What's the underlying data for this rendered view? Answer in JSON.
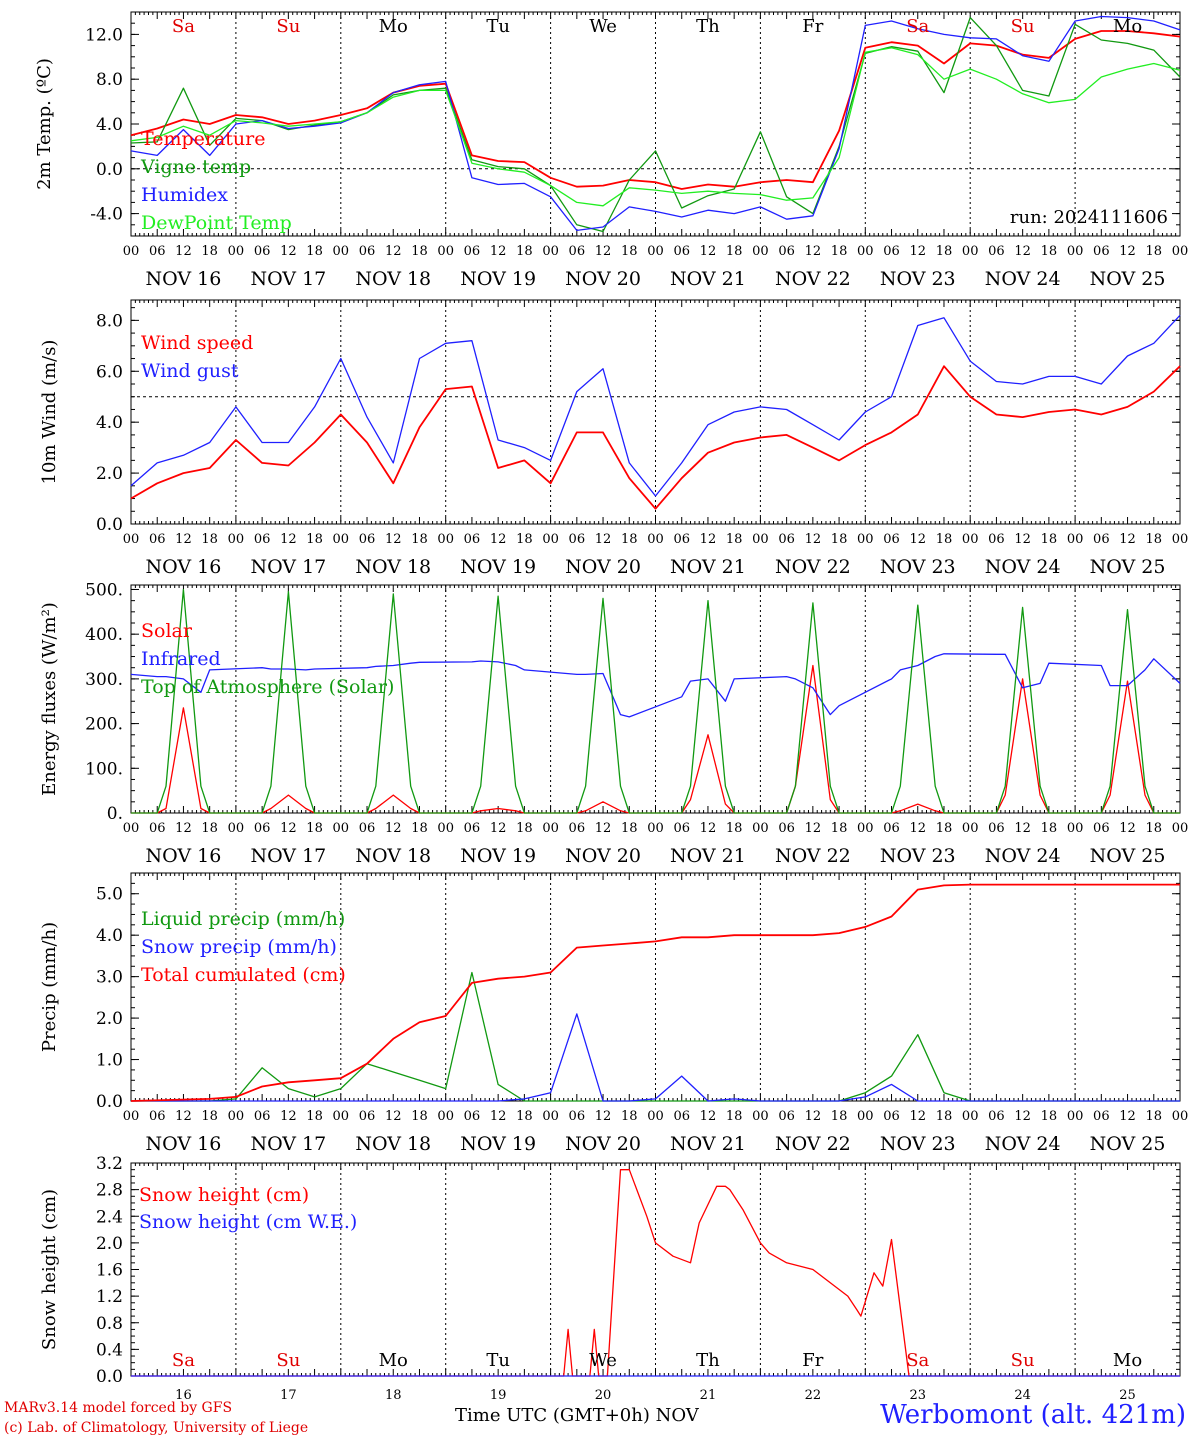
{
  "days": [
    "NOV 16",
    "NOV 17",
    "NOV 18",
    "NOV 19",
    "NOV 20",
    "NOV 21",
    "NOV 22",
    "NOV 23",
    "NOV 24",
    "NOV 25"
  ],
  "weekdays": [
    "Sa",
    "Su",
    "Mo",
    "Tu",
    "We",
    "Th",
    "Fr",
    "Sa",
    "Su",
    "Mo"
  ],
  "weekday_colors": [
    "#e00000",
    "#e00000",
    "#000000",
    "#000000",
    "#000000",
    "#000000",
    "#000000",
    "#e00000",
    "#e00000",
    "#000000"
  ],
  "day_numbers": [
    "16",
    "17",
    "18",
    "19",
    "20",
    "21",
    "22",
    "23",
    "24",
    "25"
  ],
  "hour_ticks": [
    "00",
    "06",
    "12",
    "18"
  ],
  "x_axis_title": "Time UTC (GMT+0h)",
  "x_axis_month": "NOV",
  "footer_model": "MARv3.14 model forced by GFS",
  "footer_copyright": "(c) Lab. of Climatology, University of Liege",
  "station": "Werbomont (alt. 421m)",
  "colors": {
    "red": "#ff0000",
    "darkgreen": "#119911",
    "blue": "#2020ff",
    "lightgreen": "#22ee22",
    "darkred": "#e00000"
  },
  "chart_data": [
    {
      "type": "line",
      "ylabel": "2m Temp. (ºC)",
      "ylim": [
        -6,
        14
      ],
      "yticks": [
        "-4.0",
        "0.0",
        "4.0",
        "8.0",
        "12.0"
      ],
      "ref_line": 0,
      "annotation": "run: 2024111606",
      "weekday_labels": "top",
      "x_hours": [
        0,
        6,
        12,
        18,
        24,
        30,
        36,
        42,
        48,
        54,
        60,
        66,
        72,
        78,
        84,
        90,
        96,
        102,
        108,
        114,
        120,
        126,
        132,
        138,
        144,
        150,
        156,
        162,
        168,
        174,
        180,
        186,
        192,
        198,
        204,
        210,
        216,
        222,
        228,
        234,
        240
      ],
      "series": [
        {
          "name": "Temperature",
          "color": "red",
          "values": [
            3.0,
            3.6,
            4.4,
            4.0,
            4.8,
            4.6,
            4.0,
            4.3,
            4.8,
            5.4,
            6.8,
            7.4,
            7.6,
            1.2,
            0.7,
            0.6,
            -0.8,
            -1.6,
            -1.5,
            -1.0,
            -1.2,
            -1.8,
            -1.4,
            -1.6,
            -1.2,
            -1.0,
            -1.2,
            3.4,
            10.8,
            11.3,
            11.0,
            9.4,
            11.2,
            11.0,
            10.2,
            9.9,
            11.6,
            12.3,
            12.3,
            12.1,
            11.8
          ]
        },
        {
          "name": "Vigne temp",
          "color": "darkgreen",
          "values": [
            2.3,
            2.4,
            7.2,
            2.1,
            4.5,
            4.3,
            3.5,
            3.9,
            4.2,
            5.0,
            6.6,
            7.0,
            7.2,
            0.8,
            0.2,
            0.0,
            -1.5,
            -5.0,
            -5.6,
            -1.0,
            1.6,
            -3.5,
            -2.4,
            -1.8,
            3.3,
            -2.5,
            -4.0,
            2.0,
            10.3,
            10.9,
            10.5,
            6.8,
            13.5,
            11.0,
            7.0,
            6.5,
            12.9,
            11.5,
            11.2,
            10.6,
            8.2
          ]
        },
        {
          "name": "Humidex",
          "color": "blue",
          "values": [
            1.6,
            1.2,
            3.5,
            1.2,
            4.0,
            4.3,
            3.6,
            3.8,
            4.1,
            5.0,
            6.8,
            7.5,
            7.8,
            -0.8,
            -1.4,
            -1.3,
            -2.5,
            -5.5,
            -5.2,
            -3.4,
            -3.8,
            -4.3,
            -3.7,
            -4.0,
            -3.4,
            -4.5,
            -4.2,
            1.8,
            12.8,
            13.2,
            12.5,
            12.0,
            11.7,
            11.6,
            10.1,
            9.6,
            13.2,
            13.6,
            13.5,
            13.2,
            12.4
          ]
        },
        {
          "name": "DewPoint Temp",
          "color": "lightgreen",
          "values": [
            2.5,
            2.8,
            3.8,
            3.0,
            4.3,
            4.1,
            3.8,
            4.0,
            4.2,
            5.0,
            6.4,
            7.0,
            7.0,
            0.5,
            0.0,
            -0.3,
            -1.5,
            -3.0,
            -3.3,
            -1.7,
            -1.9,
            -2.2,
            -2.0,
            -2.2,
            -2.3,
            -2.8,
            -2.6,
            1.0,
            10.4,
            10.8,
            10.2,
            8.0,
            8.9,
            8.0,
            6.7,
            5.9,
            6.2,
            8.2,
            8.9,
            9.4,
            8.8
          ]
        }
      ]
    },
    {
      "type": "line",
      "ylabel": "10m Wind (m/s)",
      "ylim": [
        0,
        8.8
      ],
      "yticks": [
        "0.0",
        "2.0",
        "4.0",
        "6.0",
        "8.0"
      ],
      "ref_line": 5,
      "x_hours": [
        0,
        6,
        12,
        18,
        24,
        30,
        36,
        42,
        48,
        54,
        60,
        66,
        72,
        78,
        84,
        90,
        96,
        102,
        108,
        114,
        120,
        126,
        132,
        138,
        144,
        150,
        156,
        162,
        168,
        174,
        180,
        186,
        192,
        198,
        204,
        210,
        216,
        222,
        228,
        234,
        240
      ],
      "series": [
        {
          "name": "Wind speed",
          "color": "red",
          "values": [
            1.0,
            1.6,
            2.0,
            2.2,
            3.3,
            2.4,
            2.3,
            3.2,
            4.3,
            3.2,
            1.6,
            3.8,
            5.3,
            5.4,
            2.2,
            2.5,
            1.6,
            3.6,
            3.6,
            1.8,
            0.6,
            1.8,
            2.8,
            3.2,
            3.4,
            3.5,
            3.0,
            2.5,
            3.1,
            3.6,
            4.3,
            6.2,
            5.0,
            4.3,
            4.2,
            4.4,
            4.5,
            4.3,
            4.6,
            5.2,
            6.2
          ]
        },
        {
          "name": "Wind gust",
          "color": "blue",
          "values": [
            1.5,
            2.4,
            2.7,
            3.2,
            4.6,
            3.2,
            3.2,
            4.6,
            6.5,
            4.2,
            2.4,
            6.5,
            7.1,
            7.2,
            3.3,
            3.0,
            2.5,
            5.2,
            6.1,
            2.4,
            1.1,
            2.4,
            3.9,
            4.4,
            4.6,
            4.5,
            3.9,
            3.3,
            4.4,
            5.0,
            7.8,
            8.1,
            6.4,
            5.6,
            5.5,
            5.8,
            5.8,
            5.5,
            6.6,
            7.1,
            8.2
          ]
        }
      ]
    },
    {
      "type": "line",
      "ylabel": "Energy fluxes (W/m²)",
      "ylim": [
        0,
        510
      ],
      "yticks": [
        "0.",
        "100.",
        "200.",
        "300.",
        "400.",
        "500."
      ],
      "x_hours": [
        0,
        6,
        8,
        12,
        16,
        18,
        30,
        32,
        36,
        40,
        42,
        54,
        56,
        60,
        64,
        66,
        78,
        80,
        84,
        88,
        90,
        102,
        104,
        108,
        112,
        114,
        126,
        128,
        132,
        136,
        138,
        150,
        152,
        156,
        160,
        162,
        174,
        176,
        180,
        184,
        186,
        198,
        200,
        204,
        208,
        210,
        222,
        224,
        228,
        232,
        234,
        240
      ],
      "series": [
        {
          "name": "Solar",
          "color": "red",
          "values": [
            0,
            0,
            10,
            235,
            10,
            0,
            0,
            10,
            40,
            10,
            0,
            0,
            10,
            40,
            10,
            0,
            0,
            5,
            10,
            5,
            0,
            0,
            5,
            25,
            5,
            0,
            0,
            30,
            175,
            20,
            0,
            0,
            60,
            330,
            30,
            0,
            0,
            5,
            20,
            5,
            0,
            0,
            40,
            300,
            40,
            0,
            0,
            40,
            295,
            40,
            0,
            0
          ]
        },
        {
          "name": "Infrared",
          "color": "blue",
          "values": [
            310,
            305,
            305,
            300,
            270,
            320,
            325,
            322,
            322,
            320,
            322,
            325,
            328,
            330,
            335,
            337,
            338,
            340,
            338,
            330,
            320,
            310,
            310,
            312,
            220,
            215,
            260,
            295,
            300,
            250,
            300,
            305,
            300,
            280,
            220,
            240,
            300,
            320,
            330,
            350,
            356,
            355,
            355,
            280,
            290,
            335,
            330,
            285,
            285,
            320,
            345,
            290
          ]
        },
        {
          "name": "Top of Atmosphere (Solar)",
          "color": "darkgreen",
          "values": [
            0,
            0,
            60,
            500,
            60,
            0,
            0,
            60,
            495,
            60,
            0,
            0,
            60,
            490,
            60,
            0,
            0,
            60,
            485,
            60,
            0,
            0,
            60,
            480,
            60,
            0,
            0,
            60,
            475,
            60,
            0,
            0,
            60,
            470,
            60,
            0,
            0,
            60,
            465,
            60,
            0,
            0,
            60,
            460,
            60,
            0,
            0,
            60,
            455,
            60,
            0,
            0
          ]
        }
      ]
    },
    {
      "type": "line",
      "ylabel": "Precip (mm/h)",
      "ylim": [
        0,
        5.5
      ],
      "yticks": [
        "0.0",
        "1.0",
        "2.0",
        "3.0",
        "4.0",
        "5.0"
      ],
      "x_hours": [
        0,
        18,
        24,
        30,
        36,
        42,
        48,
        54,
        60,
        66,
        72,
        78,
        84,
        90,
        96,
        102,
        108,
        114,
        120,
        126,
        132,
        138,
        144,
        150,
        156,
        162,
        168,
        174,
        180,
        186,
        192,
        198,
        204,
        210,
        216,
        222,
        228,
        234,
        240
      ],
      "series": [
        {
          "name": "Liquid precip (mm/h)",
          "color": "darkgreen",
          "values": [
            0,
            0,
            0.05,
            0.8,
            0.3,
            0.1,
            0.3,
            0.9,
            0.7,
            0.5,
            0.3,
            3.1,
            0.4,
            0,
            0,
            0,
            0,
            0,
            0,
            0,
            0,
            0,
            0,
            0,
            0,
            0,
            0.2,
            0.6,
            1.6,
            0.2,
            0,
            0,
            0,
            0,
            0,
            0,
            0,
            0,
            0
          ]
        },
        {
          "name": "Snow precip (mm/h)",
          "color": "blue",
          "values": [
            0,
            0,
            0,
            0,
            0,
            0,
            0,
            0,
            0,
            0,
            0,
            0,
            0,
            0.05,
            0.2,
            2.1,
            0,
            0,
            0.05,
            0.6,
            0,
            0.05,
            0,
            0,
            0,
            0,
            0.1,
            0.4,
            0,
            0,
            0,
            0,
            0,
            0,
            0,
            0,
            0,
            0,
            0
          ]
        },
        {
          "name": "Total cumulated (cm)",
          "color": "red",
          "values": [
            0,
            0.05,
            0.1,
            0.35,
            0.45,
            0.5,
            0.55,
            0.9,
            1.5,
            1.9,
            2.05,
            2.85,
            2.95,
            3.0,
            3.1,
            3.7,
            3.75,
            3.8,
            3.85,
            3.95,
            3.95,
            4.0,
            4.0,
            4.0,
            4.0,
            4.05,
            4.2,
            4.45,
            5.1,
            5.2,
            5.22,
            5.22,
            5.22,
            5.22,
            5.22,
            5.22,
            5.22,
            5.22,
            5.22
          ]
        }
      ]
    },
    {
      "type": "line",
      "ylabel": "Snow height (cm)",
      "ylim": [
        0,
        3.2
      ],
      "yticks": [
        "0.0",
        "0.4",
        "0.8",
        "1.2",
        "1.6",
        "2.0",
        "2.4",
        "2.8",
        "3.2"
      ],
      "weekday_labels": "bottom",
      "x_hours": [
        0,
        99,
        100,
        101,
        105,
        106,
        107,
        108,
        109,
        112,
        114,
        118,
        120,
        124,
        128,
        130,
        134,
        136,
        137,
        140,
        144,
        146,
        150,
        156,
        164,
        166,
        167,
        170,
        171,
        172,
        174,
        178,
        180,
        182,
        185,
        190,
        195,
        204,
        208,
        215,
        220,
        223,
        226,
        228,
        240
      ],
      "series": [
        {
          "name": "Snow height (cm)",
          "color": "red",
          "values": [
            0,
            0,
            0.7,
            0,
            0,
            0.7,
            0,
            0,
            0,
            3.1,
            3.1,
            2.4,
            2.0,
            1.8,
            1.7,
            2.3,
            2.85,
            2.85,
            2.8,
            2.5,
            2.0,
            1.85,
            1.7,
            1.6,
            1.2,
            1.0,
            0.9,
            1.55,
            1.45,
            1.35,
            2.05,
            0,
            0,
            0,
            0,
            0,
            0,
            0,
            0,
            0,
            0,
            0,
            0,
            0,
            0
          ]
        },
        {
          "name": "Snow height (cm W.E.)",
          "color": "blue",
          "values": [
            0,
            0,
            0,
            0,
            0,
            0,
            0,
            0,
            0,
            0,
            0,
            0,
            0,
            0,
            0,
            0,
            0,
            0,
            0,
            0,
            0,
            0,
            0,
            0,
            0,
            0,
            0,
            0,
            0,
            0,
            0,
            0,
            0,
            0,
            0,
            0,
            0,
            0,
            0,
            0,
            0,
            0,
            0,
            0,
            0
          ]
        }
      ]
    }
  ]
}
